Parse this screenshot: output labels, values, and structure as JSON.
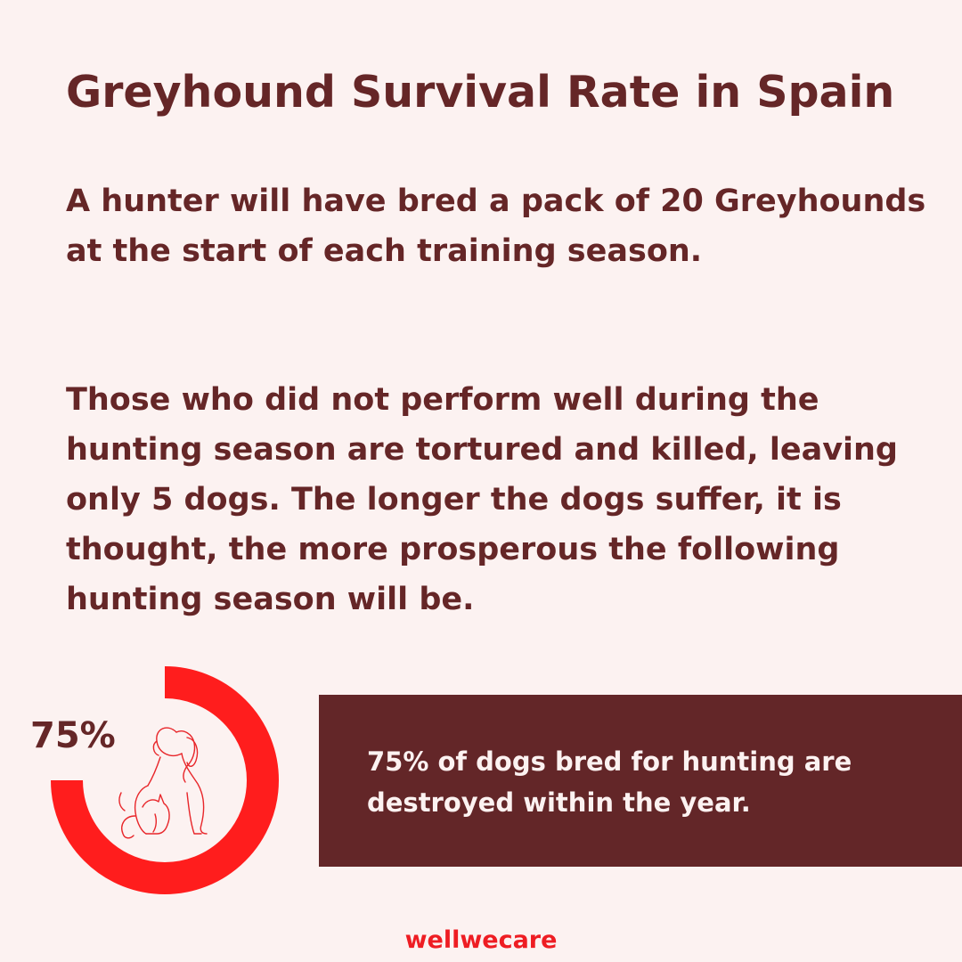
{
  "title": "Greyhound Survival Rate in Spain",
  "paragraph_1": "A hunter will have bred a pack of 20 Greyhounds at the start of each training season.",
  "paragraph_2": "Those who did not perform well during the hunting season are tortured and killed, leaving only 5 dogs. The longer the dogs suffer, it is thought, the more prosperous the following hunting season will be.",
  "stat": {
    "label": "75%",
    "value_percent": 75,
    "ring_color": "#ff1d1d",
    "icon": "dog-and-cat-icon"
  },
  "callout": {
    "text": "75% of dogs bred for hunting are destroyed within the year."
  },
  "brand": "wellwecare",
  "colors": {
    "background": "#fcf2f1",
    "text": "#652627",
    "callout_bg": "#632628",
    "brand": "#ee1d23"
  }
}
